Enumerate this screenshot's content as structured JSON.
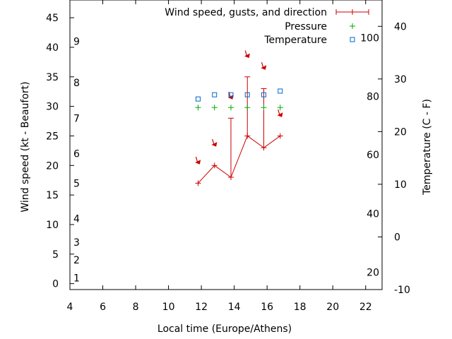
{
  "chart_data": {
    "type": "line",
    "xlabel": "Local time (Europe/Athens)",
    "ylabel": "Wind speed (kt - Beaufort)",
    "y2label": "Temperature (C - F)",
    "xlim": [
      4,
      23
    ],
    "ylim": [
      -1,
      48
    ],
    "y2lim": [
      -10,
      45
    ],
    "x_ticks": [
      "4",
      "6",
      "8",
      "10",
      "12",
      "14",
      "16",
      "18",
      "20",
      "22"
    ],
    "y_ticks": [
      "0",
      "5",
      "10",
      "15",
      "20",
      "25",
      "30",
      "35",
      "40",
      "45"
    ],
    "y2_ticks": [
      "-10",
      "0",
      "10",
      "20",
      "30",
      "40"
    ],
    "fahrenheit_labels": [
      {
        "label": "20",
        "celsius": -6.7
      },
      {
        "label": "40",
        "celsius": 4.4
      },
      {
        "label": "60",
        "celsius": 15.6
      },
      {
        "label": "80",
        "celsius": 26.7
      },
      {
        "label": "100",
        "celsius": 37.8
      }
    ],
    "beaufort_labels": [
      {
        "label": "1",
        "kt": 1
      },
      {
        "label": "2",
        "kt": 4
      },
      {
        "label": "3",
        "kt": 7
      },
      {
        "label": "4",
        "kt": 11
      },
      {
        "label": "5",
        "kt": 17
      },
      {
        "label": "6",
        "kt": 22
      },
      {
        "label": "7",
        "kt": 28
      },
      {
        "label": "8",
        "kt": 34
      },
      {
        "label": "9",
        "kt": 41
      }
    ],
    "legend": {
      "position": "top-right",
      "entries": [
        "Wind speed, gusts, and direction",
        "Pressure",
        "Temperature"
      ]
    },
    "series": [
      {
        "name": "Wind speed, gusts, and direction",
        "color": "#cc0000",
        "x": [
          11.8,
          12.8,
          13.8,
          14.8,
          15.8,
          16.8
        ],
        "speed": [
          17,
          20,
          18,
          25,
          23,
          25
        ],
        "gust": [
          17,
          20,
          28,
          35,
          33,
          25
        ],
        "direction_marker_kt": [
          20.5,
          23.5,
          31.5,
          38.5,
          36.5,
          28.5
        ]
      },
      {
        "name": "Pressure",
        "color": "#00aa00",
        "x": [
          11.8,
          12.8,
          13.8,
          14.8,
          15.8,
          16.8
        ],
        "values_kt_scale": [
          29.8,
          29.8,
          29.8,
          29.8,
          29.8,
          29.8
        ]
      },
      {
        "name": "Temperature",
        "color": "#0066cc",
        "x": [
          11.8,
          12.8,
          13.8,
          14.8,
          15.8,
          16.8
        ],
        "values_celsius": [
          26.2,
          27.0,
          27.0,
          27.0,
          27.0,
          27.7
        ]
      }
    ]
  }
}
